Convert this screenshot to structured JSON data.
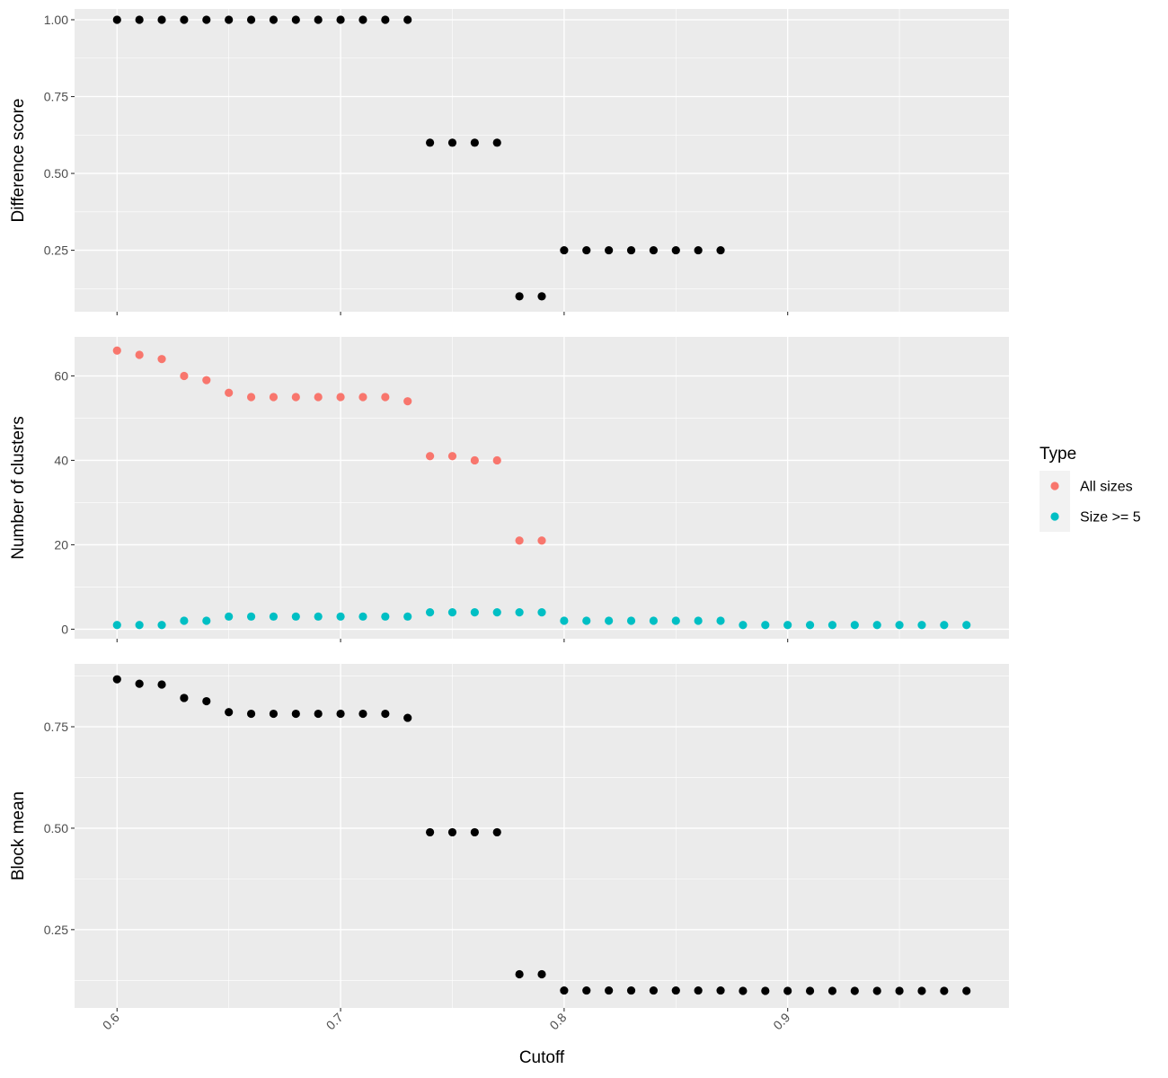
{
  "chart_data": [
    {
      "type": "scatter",
      "panel": "top",
      "ylabel": "Difference score",
      "xlabel": "",
      "xlim": [
        0.581,
        0.999
      ],
      "ylim": [
        0.05,
        1.035
      ],
      "x_ticks": [
        0.6,
        0.7,
        0.8,
        0.9
      ],
      "y_ticks": [
        0.25,
        0.5,
        0.75,
        1.0
      ],
      "y_tick_labels": [
        "0.25",
        "0.50",
        "0.75",
        "1.00"
      ],
      "grid": true,
      "series": [
        {
          "color": "#000000",
          "x": [
            0.6,
            0.61,
            0.62,
            0.63,
            0.64,
            0.65,
            0.66,
            0.67,
            0.68,
            0.69,
            0.7,
            0.71,
            0.72,
            0.73,
            0.74,
            0.75,
            0.76,
            0.77,
            0.78,
            0.79,
            0.8,
            0.81,
            0.82,
            0.83,
            0.84,
            0.85,
            0.86,
            0.87
          ],
          "y": [
            1.0,
            1.0,
            1.0,
            1.0,
            1.0,
            1.0,
            1.0,
            1.0,
            1.0,
            1.0,
            1.0,
            1.0,
            1.0,
            1.0,
            0.6,
            0.6,
            0.6,
            0.6,
            0.1,
            0.1,
            0.25,
            0.25,
            0.25,
            0.25,
            0.25,
            0.25,
            0.25,
            0.25
          ]
        }
      ]
    },
    {
      "type": "scatter",
      "panel": "middle",
      "ylabel": "Number of clusters",
      "xlabel": "",
      "xlim": [
        0.581,
        0.999
      ],
      "ylim": [
        -2.25,
        69.25
      ],
      "x_ticks": [
        0.6,
        0.7,
        0.8,
        0.9
      ],
      "y_ticks": [
        0,
        20,
        40,
        60
      ],
      "y_tick_labels": [
        "0",
        "20",
        "40",
        "60"
      ],
      "grid": true,
      "legend": {
        "title": "Type",
        "position": "right",
        "entries": [
          "All sizes",
          "Size >= 5"
        ]
      },
      "series": [
        {
          "name": "All sizes",
          "color": "#F8766D",
          "x": [
            0.6,
            0.61,
            0.62,
            0.63,
            0.64,
            0.65,
            0.66,
            0.67,
            0.68,
            0.69,
            0.7,
            0.71,
            0.72,
            0.73,
            0.74,
            0.75,
            0.76,
            0.77,
            0.78,
            0.79
          ],
          "y": [
            66,
            65,
            64,
            60,
            59,
            56,
            55,
            55,
            55,
            55,
            55,
            55,
            55,
            54,
            41,
            41,
            40,
            40,
            21,
            21
          ]
        },
        {
          "name": "Size >= 5",
          "color": "#00BFC4",
          "x": [
            0.6,
            0.61,
            0.62,
            0.63,
            0.64,
            0.65,
            0.66,
            0.67,
            0.68,
            0.69,
            0.7,
            0.71,
            0.72,
            0.73,
            0.74,
            0.75,
            0.76,
            0.77,
            0.78,
            0.79,
            0.8,
            0.81,
            0.82,
            0.83,
            0.84,
            0.85,
            0.86,
            0.87,
            0.88,
            0.89,
            0.9,
            0.91,
            0.92,
            0.93,
            0.94,
            0.95,
            0.96,
            0.97,
            0.98
          ],
          "y": [
            1,
            1,
            1,
            2,
            2,
            3,
            3,
            3,
            3,
            3,
            3,
            3,
            3,
            3,
            4,
            4,
            4,
            4,
            4,
            4,
            2,
            2,
            2,
            2,
            2,
            2,
            2,
            2,
            1,
            1,
            1,
            1,
            1,
            1,
            1,
            1,
            1,
            1,
            1
          ]
        }
      ]
    },
    {
      "type": "scatter",
      "panel": "bottom",
      "ylabel": "Block mean",
      "xlabel": "Cutoff",
      "xlim": [
        0.581,
        0.999
      ],
      "ylim": [
        0.057,
        0.905
      ],
      "x_ticks": [
        0.6,
        0.7,
        0.8,
        0.9
      ],
      "x_tick_labels": [
        "0.6",
        "0.7",
        "0.8",
        "0.9"
      ],
      "y_ticks": [
        0.25,
        0.5,
        0.75
      ],
      "y_tick_labels": [
        "0.25",
        "0.50",
        "0.75"
      ],
      "grid": true,
      "series": [
        {
          "color": "#000000",
          "x": [
            0.6,
            0.61,
            0.62,
            0.63,
            0.64,
            0.65,
            0.66,
            0.67,
            0.68,
            0.69,
            0.7,
            0.71,
            0.72,
            0.73,
            0.74,
            0.75,
            0.76,
            0.77,
            0.78,
            0.79,
            0.8,
            0.81,
            0.82,
            0.83,
            0.84,
            0.85,
            0.86,
            0.87,
            0.88,
            0.89,
            0.9,
            0.91,
            0.92,
            0.93,
            0.94,
            0.95,
            0.96,
            0.97,
            0.98
          ],
          "y": [
            0.867,
            0.856,
            0.854,
            0.821,
            0.813,
            0.786,
            0.782,
            0.782,
            0.782,
            0.782,
            0.782,
            0.782,
            0.782,
            0.772,
            0.49,
            0.49,
            0.49,
            0.49,
            0.14,
            0.14,
            0.1,
            0.1,
            0.1,
            0.1,
            0.1,
            0.1,
            0.1,
            0.1,
            0.099,
            0.099,
            0.099,
            0.099,
            0.099,
            0.099,
            0.099,
            0.099,
            0.099,
            0.099,
            0.099
          ]
        }
      ]
    }
  ]
}
